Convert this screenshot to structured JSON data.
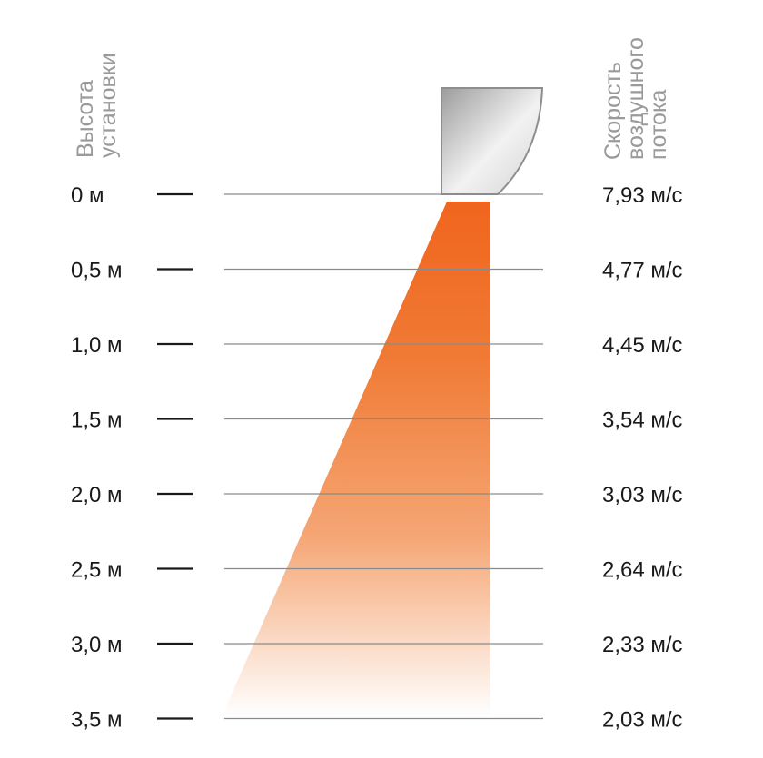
{
  "left_title": [
    "Высота",
    "установки"
  ],
  "right_title": [
    "Скорость",
    "воздушного",
    "потока"
  ],
  "colors": {
    "stream_top": "#f0651e",
    "stream_bottom": "#ffffff",
    "grid": "#8a8a8a",
    "tick": "#1a1a1a"
  },
  "chart_data": {
    "type": "table",
    "columns": [
      "Высота установки",
      "Скорость воздушного потока"
    ],
    "rows": [
      {
        "height": "0 м",
        "speed": "7,93 м/с"
      },
      {
        "height": "0,5 м",
        "speed": "4,77 м/с"
      },
      {
        "height": "1,0 м",
        "speed": "4,45 м/с"
      },
      {
        "height": "1,5 м",
        "speed": "3,54 м/с"
      },
      {
        "height": "2,0 м",
        "speed": "3,03 м/с"
      },
      {
        "height": "2,5 м",
        "speed": "2,64 м/с"
      },
      {
        "height": "3,0 м",
        "speed": "2,33 м/с"
      },
      {
        "height": "3,5 м",
        "speed": "2,03 м/с"
      }
    ]
  }
}
